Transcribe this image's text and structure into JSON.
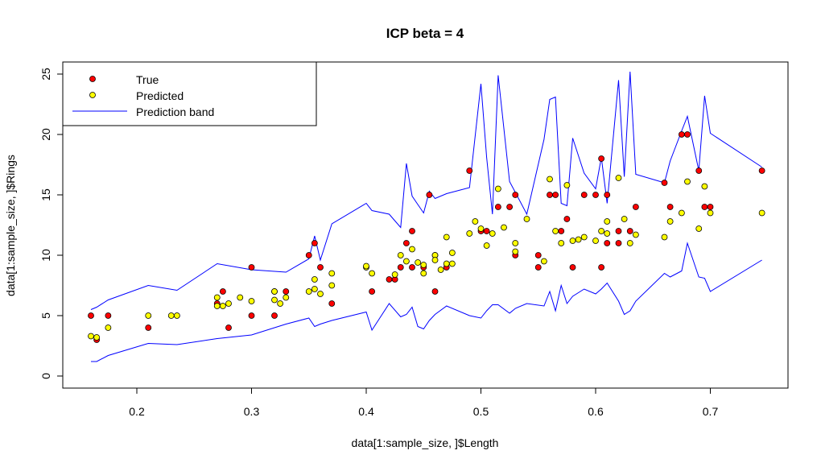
{
  "chart_data": {
    "type": "scatter",
    "title": "ICP beta = 4",
    "xlabel": "data[1:sample_size, ]$Length",
    "ylabel": "data[1:sample_size, ]$Rings",
    "xlim": [
      0.15,
      0.75
    ],
    "ylim": [
      0,
      25
    ],
    "xticks": [
      "0.2",
      "0.3",
      "0.4",
      "0.5",
      "0.6",
      "0.7"
    ],
    "yticks": [
      "0",
      "5",
      "10",
      "15",
      "20",
      "25"
    ],
    "grid": false,
    "legend": {
      "placement": "top-left",
      "entries": [
        {
          "label": "True",
          "kind": "point",
          "fill": "#ff0000"
        },
        {
          "label": "Predicted",
          "kind": "point",
          "fill": "#ffff00"
        },
        {
          "label": "Prediction band",
          "kind": "line",
          "color": "#0000ff"
        }
      ]
    },
    "colors": {
      "true": "#ff0000",
      "predicted": "#ffff00",
      "band": "#0000ff"
    },
    "series": [
      {
        "name": "True",
        "x": [
          0.16,
          0.165,
          0.175,
          0.21,
          0.27,
          0.275,
          0.28,
          0.3,
          0.3,
          0.32,
          0.32,
          0.33,
          0.35,
          0.355,
          0.36,
          0.37,
          0.405,
          0.42,
          0.425,
          0.43,
          0.435,
          0.44,
          0.44,
          0.45,
          0.455,
          0.46,
          0.46,
          0.47,
          0.49,
          0.5,
          0.505,
          0.515,
          0.525,
          0.53,
          0.53,
          0.55,
          0.55,
          0.56,
          0.565,
          0.57,
          0.575,
          0.58,
          0.59,
          0.6,
          0.605,
          0.605,
          0.61,
          0.61,
          0.62,
          0.62,
          0.63,
          0.635,
          0.66,
          0.665,
          0.675,
          0.68,
          0.69,
          0.695,
          0.7,
          0.745
        ],
        "y": [
          5,
          3,
          5,
          4,
          6,
          7,
          4,
          9,
          5,
          5,
          7,
          7,
          10,
          11,
          9,
          6,
          7,
          8,
          8,
          9,
          11,
          9,
          12,
          9,
          15,
          10,
          7,
          9,
          17,
          12,
          12,
          14,
          14,
          15,
          10,
          10,
          9,
          15,
          15,
          12,
          13,
          9,
          15,
          15,
          18,
          9,
          15,
          11,
          11,
          12,
          12,
          14,
          16,
          14,
          20,
          20,
          17,
          14,
          14,
          17
        ]
      },
      {
        "name": "Predicted",
        "x": [
          0.16,
          0.165,
          0.175,
          0.21,
          0.23,
          0.235,
          0.27,
          0.27,
          0.275,
          0.28,
          0.29,
          0.3,
          0.32,
          0.32,
          0.325,
          0.33,
          0.355,
          0.355,
          0.35,
          0.36,
          0.37,
          0.37,
          0.4,
          0.405,
          0.4,
          0.425,
          0.43,
          0.435,
          0.44,
          0.445,
          0.45,
          0.45,
          0.46,
          0.46,
          0.465,
          0.47,
          0.47,
          0.475,
          0.475,
          0.49,
          0.495,
          0.5,
          0.505,
          0.51,
          0.515,
          0.52,
          0.53,
          0.53,
          0.54,
          0.555,
          0.56,
          0.565,
          0.57,
          0.575,
          0.58,
          0.585,
          0.59,
          0.6,
          0.605,
          0.61,
          0.61,
          0.62,
          0.625,
          0.63,
          0.635,
          0.66,
          0.665,
          0.675,
          0.68,
          0.69,
          0.695,
          0.7,
          0.745
        ],
        "y": [
          3.3,
          3.2,
          4,
          5,
          5,
          5,
          6.5,
          5.8,
          5.8,
          6,
          6.5,
          6.2,
          7,
          6.3,
          6,
          6.5,
          8,
          7.2,
          7,
          6.8,
          8.5,
          7.5,
          9,
          8.5,
          9.1,
          8.4,
          10,
          9.5,
          10.5,
          9.4,
          9.2,
          8.5,
          10,
          9.6,
          8.8,
          11.5,
          9.3,
          10.2,
          9.3,
          11.8,
          12.8,
          12.2,
          10.8,
          11.8,
          15.5,
          12.3,
          11,
          10.3,
          13,
          9.5,
          16.3,
          12,
          11,
          15.8,
          11.2,
          11.3,
          11.5,
          11.2,
          12,
          11.8,
          12.8,
          16.4,
          13,
          11,
          11.7,
          11.5,
          12.8,
          13.5,
          16.1,
          12.2,
          15.7,
          13.5,
          13.5
        ]
      },
      {
        "name": "Prediction band",
        "x": [
          0.16,
          0.165,
          0.175,
          0.21,
          0.235,
          0.27,
          0.3,
          0.33,
          0.35,
          0.355,
          0.36,
          0.37,
          0.4,
          0.405,
          0.42,
          0.43,
          0.435,
          0.44,
          0.445,
          0.45,
          0.455,
          0.46,
          0.47,
          0.49,
          0.5,
          0.505,
          0.51,
          0.515,
          0.525,
          0.53,
          0.54,
          0.555,
          0.56,
          0.565,
          0.57,
          0.575,
          0.58,
          0.59,
          0.6,
          0.605,
          0.61,
          0.62,
          0.625,
          0.63,
          0.635,
          0.66,
          0.665,
          0.675,
          0.68,
          0.69,
          0.695,
          0.7,
          0.745
        ],
        "upper": [
          5.5,
          5.7,
          6.3,
          7.5,
          7.1,
          9.3,
          8.8,
          8.6,
          9.7,
          11.6,
          9.6,
          12.6,
          14.3,
          13.7,
          13.4,
          12.3,
          17.6,
          14.9,
          14.2,
          13.5,
          15.3,
          14.7,
          15.1,
          15.6,
          24.2,
          18.1,
          13.4,
          24.9,
          16.1,
          15.2,
          13.4,
          19.6,
          22.9,
          23.1,
          14.3,
          14.1,
          19.7,
          16.8,
          15.5,
          18.1,
          14.3,
          24.5,
          16.5,
          25.2,
          16.7,
          16.0,
          17.8,
          20.3,
          21.5,
          17.0,
          23.2,
          20.1,
          17.3
        ],
        "lower": [
          1.2,
          1.2,
          1.7,
          2.7,
          2.6,
          3.1,
          3.4,
          4.3,
          4.8,
          4.1,
          4.3,
          4.6,
          5.3,
          3.8,
          6.0,
          4.9,
          5.1,
          5.7,
          4.1,
          3.9,
          4.6,
          5.1,
          5.8,
          5.0,
          4.8,
          5.4,
          5.9,
          5.9,
          5.2,
          5.6,
          6.0,
          5.8,
          7.0,
          5.4,
          7.5,
          6.0,
          6.6,
          7.2,
          6.8,
          7.2,
          7.7,
          6.2,
          5.1,
          5.4,
          6.2,
          8.5,
          8.2,
          8.7,
          11.0,
          8.2,
          8.1,
          7.0,
          9.6
        ]
      }
    ]
  }
}
